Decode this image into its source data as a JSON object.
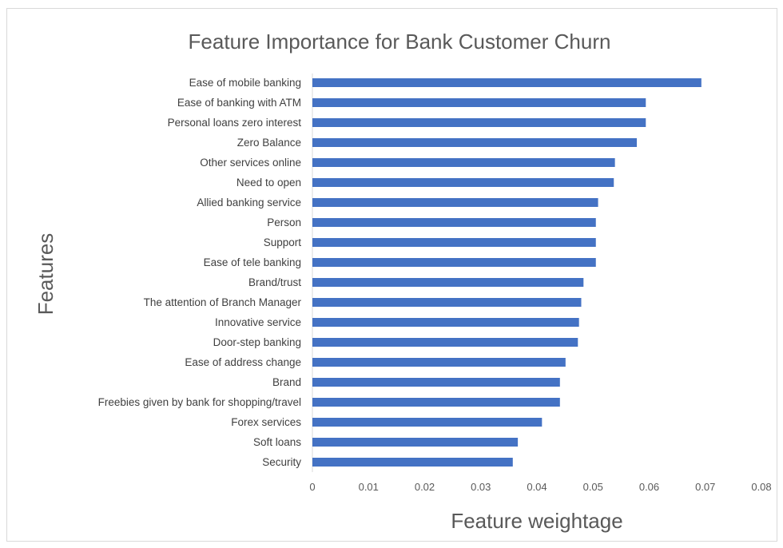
{
  "chart_data": {
    "type": "bar",
    "orientation": "horizontal",
    "title": "Feature Importance for Bank Customer Churn",
    "xlabel": "Feature weightage",
    "ylabel": "Features",
    "xlim": [
      0,
      0.08
    ],
    "x_ticks": [
      "0",
      "0.01",
      "0.02",
      "0.03",
      "0.04",
      "0.05",
      "0.06",
      "0.07",
      "0.08"
    ],
    "grid": false,
    "legend": "none",
    "bar_color": "#4472c4",
    "categories": [
      "Ease of mobile banking",
      "Ease of banking with ATM",
      "Personal loans zero interest",
      "Zero Balance",
      "Other services online",
      "Need to open",
      "Allied banking service",
      "Person",
      "Support",
      "Ease of tele banking",
      "Brand/trust",
      "The attention of Branch Manager",
      "Innovative service",
      "Door-step banking",
      "Ease of address change",
      "Brand",
      "Freebies given by bank for shopping/travel",
      "Forex services",
      "Soft loans",
      "Security"
    ],
    "values": [
      0.0693,
      0.0594,
      0.0594,
      0.0578,
      0.0539,
      0.0537,
      0.0509,
      0.0505,
      0.0505,
      0.0505,
      0.0483,
      0.0479,
      0.0475,
      0.0473,
      0.0451,
      0.0441,
      0.0441,
      0.0409,
      0.0366,
      0.0357
    ]
  }
}
